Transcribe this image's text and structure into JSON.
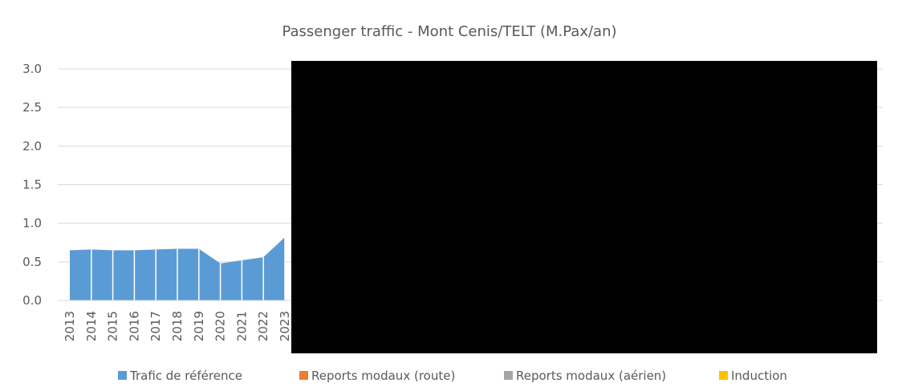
{
  "chart_data": {
    "type": "area",
    "title": "Passenger traffic - Mont Cenis/TELT (M.Pax/an)",
    "categories": [
      "2013",
      "2014",
      "2015",
      "2016",
      "2017",
      "2018",
      "2019",
      "2020",
      "2021",
      "2022",
      "2023"
    ],
    "series": [
      {
        "name": "Trafic de référence",
        "color": "#5b9bd5",
        "values": [
          0.65,
          0.66,
          0.65,
          0.65,
          0.66,
          0.67,
          0.67,
          0.48,
          0.52,
          0.56,
          0.82
        ]
      },
      {
        "name": "Reports modaux (route)",
        "color": "#ed7d31",
        "values": [
          0,
          0,
          0,
          0,
          0,
          0,
          0,
          0,
          0,
          0,
          0
        ]
      },
      {
        "name": "Reports modaux (aérien)",
        "color": "#a5a5a5",
        "values": [
          0,
          0,
          0,
          0,
          0,
          0,
          0,
          0,
          0,
          0,
          0
        ]
      },
      {
        "name": "Induction",
        "color": "#ffc000",
        "values": [
          0,
          0,
          0,
          0,
          0,
          0,
          0,
          0,
          0,
          0,
          0
        ]
      }
    ],
    "stacked": true,
    "ylim": [
      0,
      3
    ],
    "yticks": [
      {
        "value": 0,
        "label": "0.0"
      },
      {
        "value": 0.5,
        "label": "0.5"
      },
      {
        "value": 1,
        "label": "1.0"
      },
      {
        "value": 1.5,
        "label": "1.5"
      },
      {
        "value": 2,
        "label": "2.0"
      },
      {
        "value": 2.5,
        "label": "2.5"
      },
      {
        "value": 3,
        "label": "3.0"
      }
    ],
    "grid": true,
    "legend": "bottom"
  }
}
